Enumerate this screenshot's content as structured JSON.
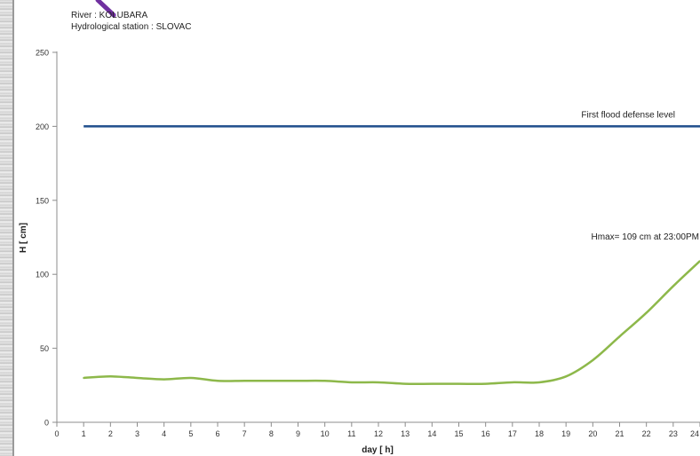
{
  "chart_data": {
    "type": "line",
    "title": "River : KOLUBARA",
    "subtitle": "Hydrological station : SLOVAC",
    "xlabel": "day [ h]",
    "ylabel": "H [ cm]",
    "xlim": [
      0,
      24
    ],
    "ylim": [
      0,
      250
    ],
    "x_ticks": [
      0,
      1,
      2,
      3,
      4,
      5,
      6,
      7,
      8,
      9,
      10,
      11,
      12,
      13,
      14,
      15,
      16,
      17,
      18,
      19,
      20,
      21,
      22,
      23,
      24
    ],
    "y_ticks": [
      0,
      50,
      100,
      150,
      200,
      250
    ],
    "grid": false,
    "series": [
      {
        "name": "",
        "color": "#8db84a",
        "x": [
          1,
          2,
          3,
          4,
          5,
          6,
          7,
          8,
          9,
          10,
          11,
          12,
          13,
          14,
          15,
          16,
          17,
          18,
          19,
          20,
          21,
          22,
          23,
          24
        ],
        "values": [
          30,
          31,
          30,
          29,
          30,
          28,
          28,
          28,
          28,
          28,
          27,
          27,
          26,
          26,
          26,
          26,
          27,
          27,
          31,
          42,
          58,
          74,
          92,
          109
        ]
      }
    ],
    "reference_line": {
      "value": 200,
      "x_range": [
        1,
        24
      ],
      "color": "#1f4e8c",
      "label": "First flood defense level"
    },
    "annotation": {
      "text": "Hmax= 109 cm at 23:00PM",
      "x": 24,
      "y": 109
    },
    "pen_mark_color": "#7030a0"
  }
}
